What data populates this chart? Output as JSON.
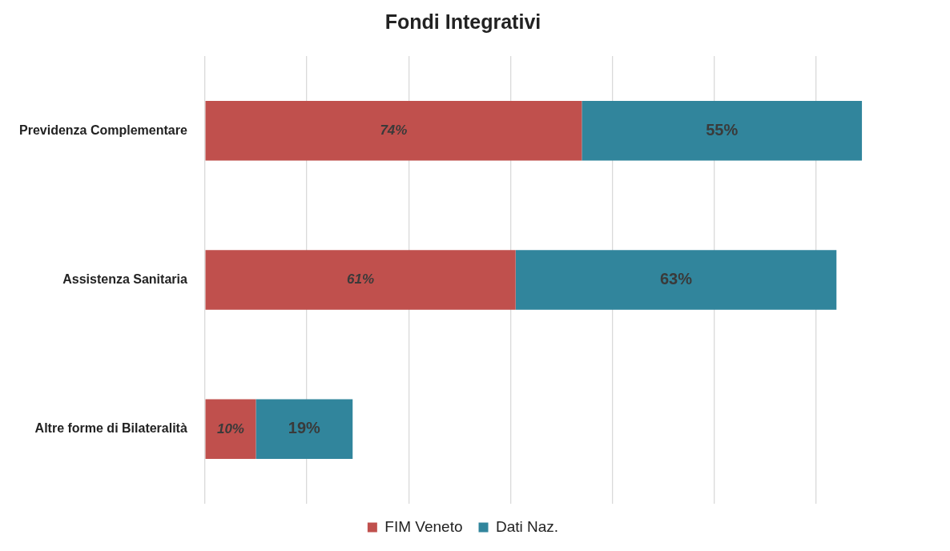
{
  "chart_data": {
    "type": "bar",
    "orientation": "horizontal",
    "stacked": true,
    "title": "Fondi Integrativi",
    "categories": [
      "Previdenza Complementare",
      "Assistenza Sanitaria",
      "Altre forme di Bilateralità"
    ],
    "series": [
      {
        "name": "FIM Veneto",
        "color": "#c0504d",
        "values": [
          74,
          61,
          10
        ],
        "value_labels": [
          "74%",
          "61%",
          "10%"
        ]
      },
      {
        "name": "Dati Naz.",
        "color": "#31859c",
        "values": [
          55,
          63,
          19
        ],
        "value_labels": [
          "55%",
          "63%",
          "19%"
        ]
      }
    ],
    "xticks": [
      {
        "value": 0,
        "label": null
      },
      {
        "value": 20,
        "label": null
      },
      {
        "value": 40,
        "label": null
      },
      {
        "value": 60,
        "label": null
      },
      {
        "value": 80,
        "label": null
      },
      {
        "value": 100,
        "label": null
      },
      {
        "value": 120,
        "label": null
      }
    ],
    "tick_labels": "y",
    "grid": "x",
    "legend": "bottom"
  }
}
